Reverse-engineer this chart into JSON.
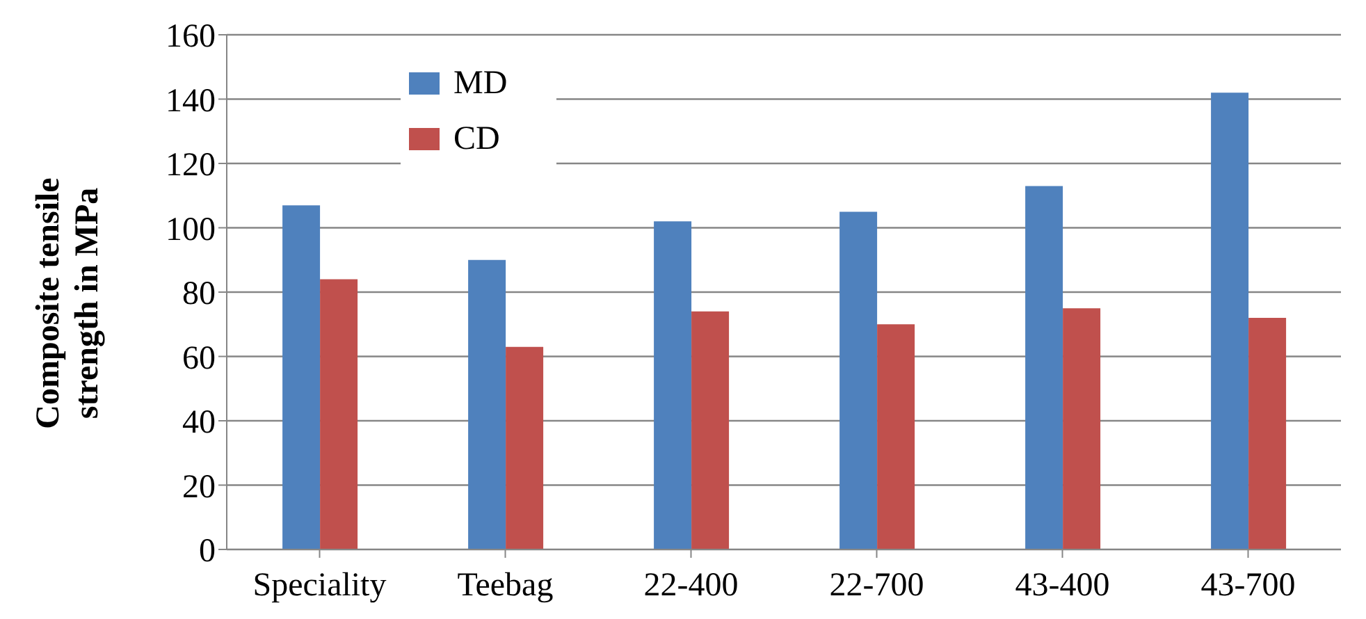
{
  "chart_data": {
    "type": "bar",
    "ylabel": "Composite tensile strength in MPa",
    "categories": [
      "Speciality",
      "Teebag",
      "22-400",
      "22-700",
      "43-400",
      "43-700"
    ],
    "series": [
      {
        "name": "MD",
        "color": "#4f81bd",
        "values": [
          107,
          90,
          102,
          105,
          113,
          142
        ]
      },
      {
        "name": "CD",
        "color": "#c0504d",
        "values": [
          84,
          63,
          74,
          70,
          75,
          72
        ]
      }
    ],
    "ylim": [
      0,
      160
    ],
    "yticks": [
      0,
      20,
      40,
      60,
      80,
      100,
      120,
      140,
      160
    ],
    "grid": "y",
    "legend": "top left"
  }
}
